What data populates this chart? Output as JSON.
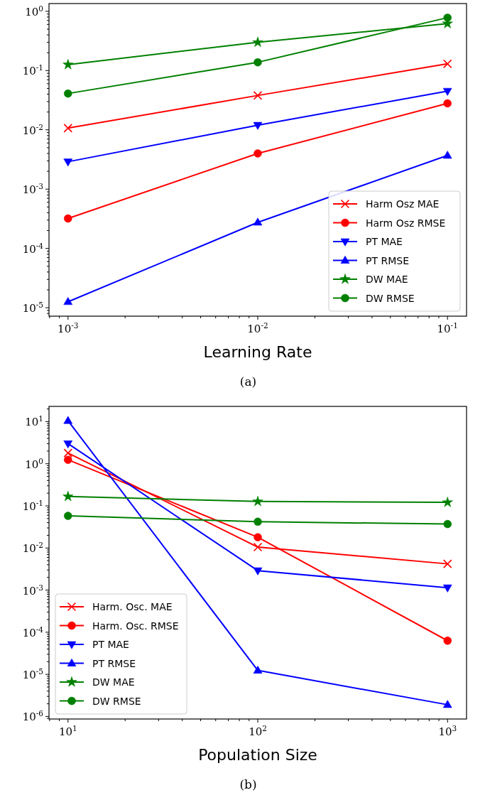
{
  "chart_data": [
    {
      "type": "line",
      "xlabel": "Learning Rate",
      "annotations": [
        "(a)"
      ],
      "log": "xy",
      "legend": "bottom right",
      "grid": false,
      "x": [
        0.001,
        0.01,
        0.1
      ],
      "xlim": [
        0.000794,
        0.126
      ],
      "ylim": [
        7.2e-06,
        1.35
      ],
      "xticks": [
        {
          "value": 0.001,
          "label": "10$^{-3}$"
        },
        {
          "value": 0.01,
          "label": "10$^{-2}$"
        },
        {
          "value": 0.1,
          "label": "10$^{-1}$"
        }
      ],
      "yticks": [
        {
          "value": 1e-05,
          "label": "10$^{-5}$"
        },
        {
          "value": 0.0001,
          "label": "10$^{-4}$"
        },
        {
          "value": 0.001,
          "label": "10$^{-3}$"
        },
        {
          "value": 0.01,
          "label": "10$^{-2}$"
        },
        {
          "value": 0.1,
          "label": "10$^{-1}$"
        },
        {
          "value": 1,
          "label": "10$^{0}$"
        }
      ],
      "series": [
        {
          "name": "Harm Osz MAE",
          "color": "#ff0000",
          "marker": "cross",
          "values": [
            0.0107,
            0.038,
            0.13
          ]
        },
        {
          "name": "Harm Osz RMSE",
          "color": "#ff0000",
          "marker": "circle",
          "values": [
            0.00032,
            0.004,
            0.028
          ]
        },
        {
          "name": "PT MAE",
          "color": "#0000ff",
          "marker": "triangle-down",
          "values": [
            0.0029,
            0.012,
            0.045
          ]
        },
        {
          "name": "PT RMSE",
          "color": "#0000ff",
          "marker": "triangle",
          "values": [
            1.26e-05,
            0.000275,
            0.0037
          ]
        },
        {
          "name": "DW MAE",
          "color": "#008000",
          "marker": "star",
          "values": [
            0.126,
            0.3,
            0.62
          ]
        },
        {
          "name": "DW RMSE",
          "color": "#008000",
          "marker": "circle",
          "values": [
            0.041,
            0.138,
            0.78
          ]
        }
      ]
    },
    {
      "type": "line",
      "xlabel": "Population Size",
      "annotations": [
        "(b)"
      ],
      "log": "xy",
      "legend": "bottom left",
      "grid": false,
      "x": [
        10,
        100,
        1000
      ],
      "xlim": [
        7.94,
        1259
      ],
      "ylim": [
        8.7e-07,
        23
      ],
      "xticks": [
        {
          "value": 10,
          "label": "10$^{1}$"
        },
        {
          "value": 100,
          "label": "10$^{2}$"
        },
        {
          "value": 1000,
          "label": "10$^{3}$"
        }
      ],
      "yticks": [
        {
          "value": 1e-06,
          "label": "10$^{-6}$"
        },
        {
          "value": 1e-05,
          "label": "10$^{-5}$"
        },
        {
          "value": 0.0001,
          "label": "10$^{-4}$"
        },
        {
          "value": 0.001,
          "label": "10$^{-3}$"
        },
        {
          "value": 0.01,
          "label": "10$^{-2}$"
        },
        {
          "value": 0.1,
          "label": "10$^{-1}$"
        },
        {
          "value": 1,
          "label": "10$^{0}$"
        },
        {
          "value": 10,
          "label": "10$^{1}$"
        }
      ],
      "series": [
        {
          "name": "Harm. Osc. MAE",
          "color": "#ff0000",
          "marker": "cross",
          "values": [
            1.8,
            0.0105,
            0.0042
          ]
        },
        {
          "name": "Harm. Osc. RMSE",
          "color": "#ff0000",
          "marker": "circle",
          "values": [
            1.24,
            0.018,
            6.3e-05
          ]
        },
        {
          "name": "PT MAE",
          "color": "#0000ff",
          "marker": "triangle-down",
          "values": [
            3.0,
            0.0029,
            0.00114
          ]
        },
        {
          "name": "PT RMSE",
          "color": "#0000ff",
          "marker": "triangle",
          "values": [
            10.5,
            1.24e-05,
            1.9e-06
          ]
        },
        {
          "name": "DW MAE",
          "color": "#008000",
          "marker": "star",
          "values": [
            0.167,
            0.127,
            0.121
          ]
        },
        {
          "name": "DW RMSE",
          "color": "#008000",
          "marker": "circle",
          "values": [
            0.058,
            0.042,
            0.037
          ]
        }
      ]
    }
  ]
}
